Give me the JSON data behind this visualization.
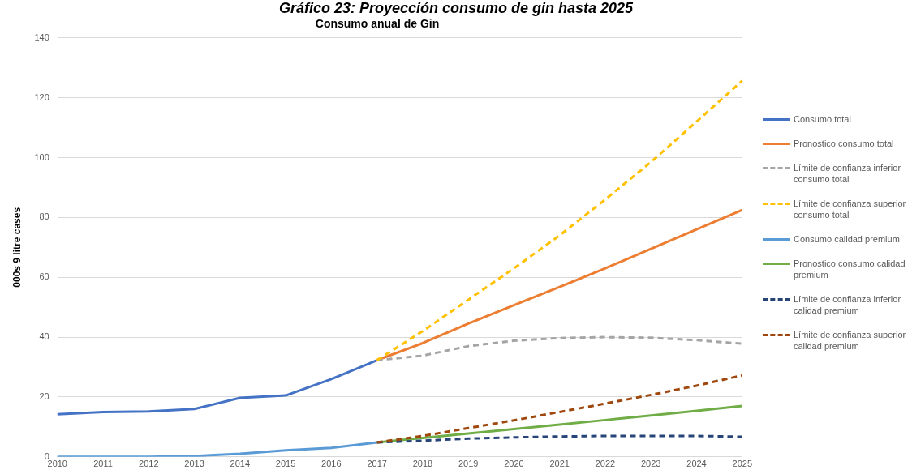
{
  "chart_data": {
    "type": "line",
    "title": "Gráfico 23: Proyección consumo de gin hasta 2025",
    "subtitle": "Consumo anual de Gin",
    "ylabel": "000s 9 litre cases",
    "categories": [
      "2010",
      "2011",
      "2012",
      "2013",
      "2014",
      "2015",
      "2016",
      "2017",
      "2018",
      "2019",
      "2020",
      "2021",
      "2022",
      "2023",
      "2024",
      "2025"
    ],
    "ylim": [
      0,
      140
    ],
    "yticks": [
      0,
      20,
      40,
      60,
      80,
      100,
      120,
      140
    ],
    "grid": "y",
    "legend": "right",
    "marker": "none",
    "series": [
      {
        "name": "Consumo total",
        "color": "#4472c4",
        "line_style": "solid",
        "values": [
          14.2,
          15,
          15.2,
          16,
          19.7,
          20.5,
          26,
          32.3,
          null,
          null,
          null,
          null,
          null,
          null,
          null,
          null
        ]
      },
      {
        "name": "Pronostico consumo total",
        "color": "#ed7d31",
        "line_style": "solid",
        "values": [
          null,
          null,
          null,
          null,
          null,
          null,
          null,
          32.3,
          38,
          44.5,
          50.7,
          56.8,
          63,
          69.5,
          76,
          82.5
        ]
      },
      {
        "name": "Límite de confianza inferior consumo total",
        "color": "#a5a5a5",
        "line_style": "dashed",
        "values": [
          null,
          null,
          null,
          null,
          null,
          null,
          null,
          32.3,
          33.8,
          37,
          38.8,
          39.7,
          40,
          39.8,
          39,
          37.8
        ]
      },
      {
        "name": "Límite de confianza superior consumo total",
        "color": "#ffc000",
        "line_style": "dashed",
        "values": [
          null,
          null,
          null,
          null,
          null,
          null,
          null,
          32.3,
          42,
          52.5,
          63,
          74,
          86,
          98.5,
          112,
          125.7
        ]
      },
      {
        "name": "Consumo calidad premium",
        "color": "#5b9bd5",
        "line_style": "solid",
        "values": [
          0,
          0,
          0,
          0.3,
          1,
          2.2,
          3,
          4.8,
          null,
          null,
          null,
          null,
          null,
          null,
          null,
          null
        ]
      },
      {
        "name": "Pronostico consumo calidad premium",
        "color": "#70ad47",
        "line_style": "solid",
        "values": [
          null,
          null,
          null,
          null,
          null,
          null,
          null,
          4.8,
          6.3,
          7.8,
          9.3,
          10.8,
          12.3,
          13.8,
          15.4,
          17
        ]
      },
      {
        "name": "Límite de confianza inferior calidad premium",
        "color": "#264478",
        "line_style": "dashed",
        "values": [
          null,
          null,
          null,
          null,
          null,
          null,
          null,
          4.8,
          5.4,
          6.1,
          6.5,
          6.8,
          7,
          7,
          7,
          6.7
        ]
      },
      {
        "name": "Límite de confianza superior calidad premium",
        "color": "#9e480e",
        "line_style": "dashed",
        "values": [
          null,
          null,
          null,
          null,
          null,
          null,
          null,
          4.8,
          7,
          9.6,
          12.2,
          15,
          17.8,
          20.7,
          23.8,
          27.2
        ]
      }
    ]
  }
}
